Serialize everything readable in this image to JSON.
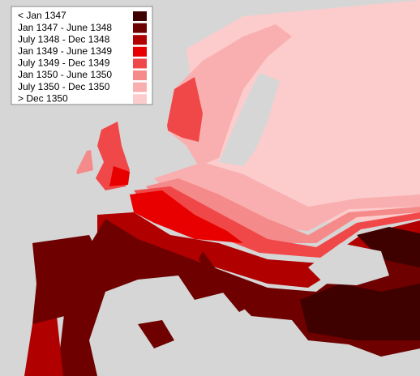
{
  "legend": {
    "items": [
      {
        "label": "< Jan 1347",
        "color": "#3f0000"
      },
      {
        "label": "Jan 1347 - June 1348",
        "color": "#6e0000"
      },
      {
        "label": "July 1348 - Dec 1348",
        "color": "#b00000"
      },
      {
        "label": "Jan 1349 - June 1349",
        "color": "#e80000"
      },
      {
        "label": "July 1349 - Dec 1349",
        "color": "#f04848"
      },
      {
        "label": "Jan 1350 - June 1350",
        "color": "#f58a8a"
      },
      {
        "label": "July 1350 - Dec 1350",
        "color": "#f9afaf"
      },
      {
        "label": "> Dec 1350",
        "color": "#fccccc"
      }
    ]
  }
}
